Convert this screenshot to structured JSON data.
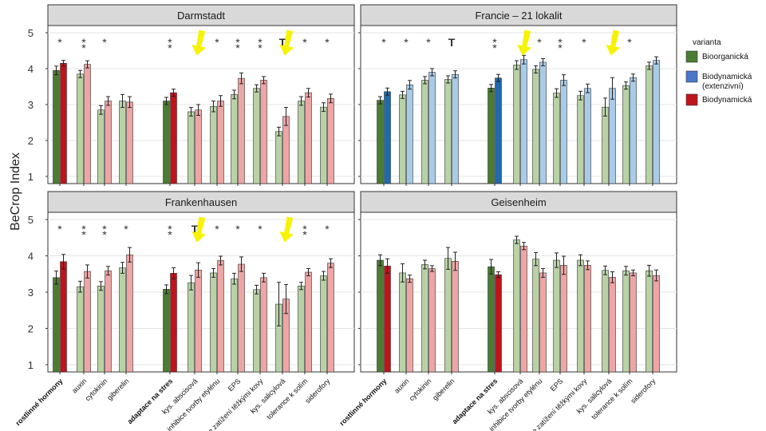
{
  "ylabel": "BeCrop Index",
  "legend": {
    "title": "varianta",
    "placement": "right",
    "items": [
      {
        "label": "Bioorganická",
        "color": "#4a7c34"
      },
      {
        "label": "Biodynamická\n(extenzivní)",
        "color": "#4a78c9"
      },
      {
        "label": "Biodynamická",
        "color": "#c0141c"
      }
    ]
  },
  "colors": {
    "bio_dark": "#4a7c34",
    "bio_light": "#b8d2a6",
    "ext_dark": "#1f6aae",
    "ext_light": "#a8cbe8",
    "dyn_dark": "#c0141c",
    "dyn_light": "#eea5a5",
    "arrow": "#f7f200",
    "strip": "#d9d9d9",
    "grid": "#e5e5e5"
  },
  "chart_data": {
    "type": "bar",
    "ylim": [
      0.8,
      5.2
    ],
    "yticks": [
      1,
      2,
      3,
      4,
      5
    ],
    "grid": true,
    "categories": [
      "rostlinné hormony",
      "auxin",
      "cytokinin",
      "giberelin",
      "adaptace na stres",
      "kys. abscisová",
      "inhibice tvorby etylénu",
      "EPS",
      "redukce zatížení těžkými kovy",
      "kys. salicylová",
      "tolerance k solím",
      "siderofory"
    ],
    "bold_categories": [
      "rostlinné hormony",
      "adaptace na stres"
    ],
    "panels": [
      {
        "title": "Darmstadt",
        "variants": [
          "Bioorganická",
          "Biodynamická"
        ],
        "series": [
          {
            "name": "Bioorganická",
            "values": [
              3.95,
              3.85,
              2.85,
              3.1,
              3.1,
              2.8,
              2.95,
              3.28,
              3.45,
              2.25,
              3.1,
              2.93
            ],
            "errors": [
              0.12,
              0.1,
              0.12,
              0.18,
              0.1,
              0.12,
              0.15,
              0.12,
              0.1,
              0.12,
              0.12,
              0.12
            ]
          },
          {
            "name": "Biodynamická",
            "values": [
              4.15,
              4.12,
              3.1,
              3.07,
              3.33,
              2.85,
              3.1,
              3.73,
              3.68,
              2.67,
              3.33,
              3.17
            ],
            "errors": [
              0.08,
              0.1,
              0.12,
              0.15,
              0.1,
              0.15,
              0.15,
              0.15,
              0.1,
              0.25,
              0.12,
              0.12
            ]
          }
        ],
        "markers": [
          "*",
          "* *",
          "*",
          "",
          "* *",
          "",
          "*",
          "* *",
          "* *",
          "T",
          "*",
          "*"
        ],
        "arrows": [
          "kys. abscisová",
          "kys. salicylová"
        ]
      },
      {
        "title": "Francie – 21 lokalit",
        "variants": [
          "Bioorganická",
          "Biodynamická (extenzivní)"
        ],
        "series": [
          {
            "name": "Bioorganická",
            "values": [
              3.12,
              3.27,
              3.68,
              3.7,
              3.46,
              4.1,
              3.98,
              3.32,
              3.25,
              2.93,
              3.53,
              4.08
            ],
            "errors": [
              0.1,
              0.1,
              0.1,
              0.1,
              0.1,
              0.12,
              0.1,
              0.12,
              0.12,
              0.25,
              0.1,
              0.1
            ]
          },
          {
            "name": "Biodynamická (extenzivní)",
            "values": [
              3.36,
              3.55,
              3.9,
              3.84,
              3.74,
              4.25,
              4.18,
              3.68,
              3.45,
              3.45,
              3.75,
              4.23
            ],
            "errors": [
              0.1,
              0.12,
              0.1,
              0.1,
              0.1,
              0.12,
              0.1,
              0.15,
              0.12,
              0.3,
              0.1,
              0.1
            ]
          }
        ],
        "markers": [
          "*",
          "*",
          "*",
          "T",
          "* *",
          "",
          "*",
          "* *",
          "*",
          "",
          "*",
          ""
        ],
        "arrows": [
          "kys. abscisová",
          "kys. salicylová"
        ]
      },
      {
        "title": "Frankenhausen",
        "variants": [
          "Bioorganická",
          "Biodynamická"
        ],
        "series": [
          {
            "name": "Bioorganická",
            "values": [
              3.4,
              3.15,
              3.17,
              3.67,
              3.08,
              3.26,
              3.53,
              3.37,
              3.07,
              2.67,
              3.17,
              3.45
            ],
            "errors": [
              0.18,
              0.15,
              0.12,
              0.15,
              0.12,
              0.2,
              0.12,
              0.15,
              0.12,
              0.6,
              0.1,
              0.12
            ]
          },
          {
            "name": "Biodynamická",
            "values": [
              3.84,
              3.57,
              3.59,
              4.03,
              3.52,
              3.61,
              3.87,
              3.77,
              3.4,
              2.81,
              3.55,
              3.8
            ],
            "errors": [
              0.2,
              0.18,
              0.12,
              0.2,
              0.15,
              0.2,
              0.12,
              0.2,
              0.12,
              0.4,
              0.1,
              0.12
            ]
          }
        ],
        "markers": [
          "*",
          "* *",
          "* *",
          "*",
          "* *",
          "T",
          "*",
          "*",
          "*",
          "",
          "* *",
          "*"
        ],
        "arrows": [
          "kys. abscisová",
          "kys. salicylová"
        ]
      },
      {
        "title": "Geisenheim",
        "variants": [
          "Bioorganická",
          "Biodynamická"
        ],
        "series": [
          {
            "name": "Bioorganická",
            "values": [
              3.88,
              3.53,
              3.76,
              3.93,
              3.7,
              4.44,
              3.91,
              3.88,
              3.88,
              3.6,
              3.59,
              3.59
            ],
            "errors": [
              0.15,
              0.25,
              0.12,
              0.3,
              0.2,
              0.1,
              0.18,
              0.2,
              0.15,
              0.12,
              0.12,
              0.15
            ]
          },
          {
            "name": "Biodynamická",
            "values": [
              3.72,
              3.37,
              3.65,
              3.85,
              3.48,
              4.27,
              3.53,
              3.74,
              3.74,
              3.41,
              3.53,
              3.46
            ],
            "errors": [
              0.2,
              0.1,
              0.08,
              0.25,
              0.08,
              0.1,
              0.12,
              0.25,
              0.12,
              0.15,
              0.08,
              0.15
            ]
          }
        ],
        "markers": [
          "",
          "",
          "",
          "",
          "",
          "",
          "",
          "",
          "",
          "",
          "",
          ""
        ],
        "arrows": []
      }
    ]
  }
}
